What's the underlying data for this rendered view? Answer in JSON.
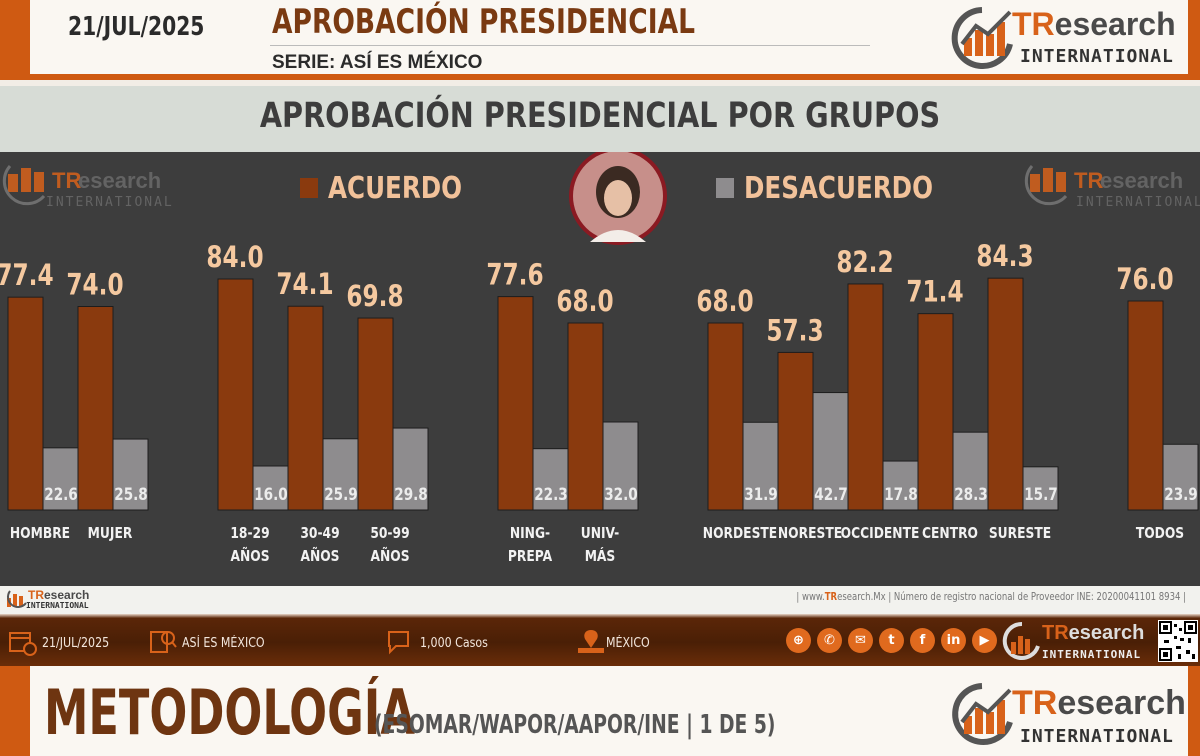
{
  "header": {
    "date": "21/JUL/2025",
    "title": "APROBACIÓN PRESIDENCIAL",
    "serie": "SERIE: ASÍ ES MÉXICO"
  },
  "brand": {
    "t": "TR",
    "rest": "esearch",
    "international": "INTERNATIONAL",
    "color_orange": "#d8621a",
    "color_dark": "#4a4a4a"
  },
  "section_title": "APROBACIÓN PRESIDENCIAL POR GRUPOS",
  "chart_data": {
    "type": "bar",
    "title": "APROBACIÓN PRESIDENCIAL POR GRUPOS",
    "ylim": [
      0,
      100
    ],
    "legend": [
      {
        "name": "ACUERDO",
        "color": "#8a3a0e"
      },
      {
        "name": "DESACUERDO",
        "color": "#8e8c8e"
      }
    ],
    "groups": [
      {
        "categories": [
          [
            "HOMBRE"
          ],
          [
            "MUJER"
          ]
        ],
        "acuerdo": [
          77.4,
          74.0
        ],
        "desacuerdo": [
          22.6,
          25.8
        ]
      },
      {
        "categories": [
          [
            "18-29",
            "AÑOS"
          ],
          [
            "30-49",
            "AÑOS"
          ],
          [
            "50-99",
            "AÑOS"
          ]
        ],
        "acuerdo": [
          84.0,
          74.1,
          69.8
        ],
        "desacuerdo": [
          16.0,
          25.9,
          29.8
        ]
      },
      {
        "categories": [
          [
            "NING-",
            "PREPA"
          ],
          [
            "UNIV-",
            "MÁS"
          ]
        ],
        "acuerdo": [
          77.6,
          68.0
        ],
        "desacuerdo": [
          22.3,
          32.0
        ]
      },
      {
        "categories": [
          [
            "NORDESTE"
          ],
          [
            "NORESTE"
          ],
          [
            "OCCIDENTE"
          ],
          [
            "CENTRO"
          ],
          [
            "SURESTE"
          ]
        ],
        "acuerdo": [
          68.0,
          57.3,
          82.2,
          71.4,
          84.3
        ],
        "desacuerdo": [
          31.9,
          42.7,
          17.8,
          28.3,
          15.7
        ]
      },
      {
        "categories": [
          [
            "TODOS"
          ]
        ],
        "acuerdo": [
          76.0
        ],
        "desacuerdo": [
          23.9
        ]
      }
    ],
    "acuerdo_labels": [
      "77.4",
      "74.0",
      "84.0",
      "74.1",
      "69.8",
      "77.6",
      "68.0",
      "68.0",
      "57.3",
      "82.2",
      "71.4",
      "84.3",
      "76.0"
    ],
    "desacuerdo_labels": [
      "22.6",
      "25.8",
      "16.0",
      "25.9",
      "29.8",
      "22.3",
      "32.0",
      "31.9",
      "42.7",
      "17.8",
      "28.3",
      "15.7",
      "23.9"
    ]
  },
  "source": {
    "prefix": "| www.",
    "tr": "TR",
    "rest": "esearch.Mx | Número de registro nacional de Proveedor INE: 20200041101 8934  |"
  },
  "info_bar": {
    "date": "21/JUL/2025",
    "serie": "ASÍ ES MÉXICO",
    "cases": "1,000 Casos",
    "place": "MÉXICO"
  },
  "metodologia": {
    "title": "METODOLOGÍA",
    "subtitle": "(ESOMAR/WAPOR/AAPOR/INE | 1 DE 5)"
  }
}
